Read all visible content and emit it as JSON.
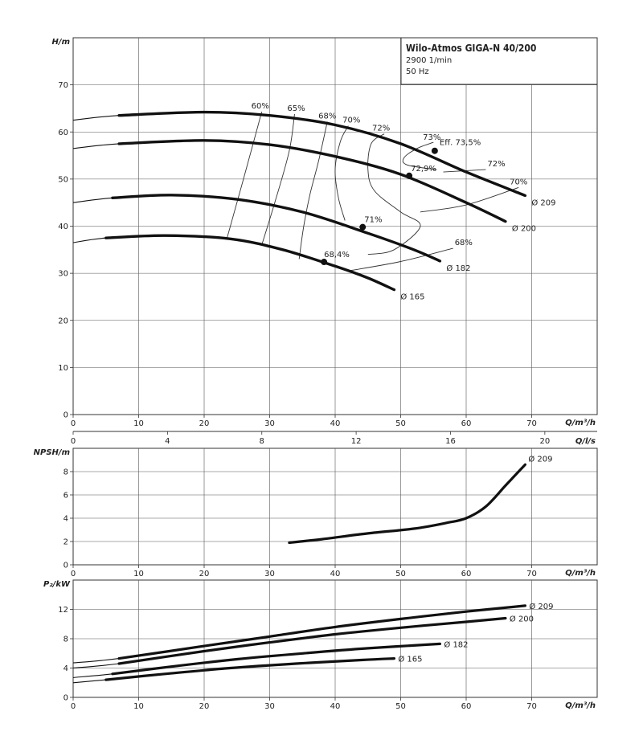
{
  "title_box": {
    "title": "Wilo-Atmos GIGA-N 40/200",
    "speed": "2900 1/min",
    "frequency": "50 Hz"
  },
  "chart_data": [
    {
      "id": "head",
      "type": "line",
      "xlabel": "Q/m³/h",
      "ylabel": "H/m",
      "xlim": [
        0,
        80
      ],
      "ylim": [
        0,
        80
      ],
      "xticks": [
        0,
        10,
        20,
        30,
        40,
        50,
        60,
        70
      ],
      "yticks": [
        0,
        10,
        20,
        30,
        40,
        50,
        60,
        70
      ],
      "grid": true,
      "series": [
        {
          "name": "Ø 209",
          "x": [
            0,
            7,
            20,
            30,
            40,
            50,
            60,
            69
          ],
          "y": [
            62.5,
            63.5,
            64.2,
            63.5,
            61.5,
            57.5,
            51.5,
            46.5
          ],
          "thick_from": 7
        },
        {
          "name": "Ø 200",
          "x": [
            0,
            7,
            20,
            30,
            40,
            50,
            60,
            66
          ],
          "y": [
            56.5,
            57.5,
            58.2,
            57.3,
            54.8,
            51.0,
            45.0,
            41.0
          ],
          "thick_from": 7
        },
        {
          "name": "Ø 182",
          "x": [
            0,
            6,
            15,
            25,
            35,
            45,
            52,
            56
          ],
          "y": [
            45.0,
            46.0,
            46.6,
            45.7,
            43.0,
            38.5,
            35.0,
            32.6
          ],
          "thick_from": 6
        },
        {
          "name": "Ø 165",
          "x": [
            0,
            5,
            14,
            24,
            32,
            40,
            45,
            49
          ],
          "y": [
            36.5,
            37.5,
            38.0,
            37.3,
            35.0,
            31.5,
            29.0,
            26.5
          ],
          "thick_from": 5
        }
      ],
      "efficiency_lines": [
        {
          "label": "60%",
          "x": [
            23.5,
            26,
            28.8
          ],
          "y": [
            37.5,
            50,
            64.3
          ]
        },
        {
          "label": "65%",
          "x": [
            28.8,
            31,
            33,
            33.8
          ],
          "y": [
            36,
            46,
            56,
            63.8
          ]
        },
        {
          "label": "68%",
          "x": [
            34.5,
            35.2,
            36.2,
            37.5,
            38.8
          ],
          "y": [
            33,
            40,
            47,
            54,
            62.2
          ]
        },
        {
          "label": "70%",
          "x": [
            41.5,
            40.5,
            40.0,
            40.8,
            42
          ],
          "y": [
            41.2,
            46,
            52,
            58,
            61.3
          ]
        },
        {
          "label": "72%",
          "x": [
            45,
            49,
            53,
            50,
            46,
            45,
            45.5,
            47.5
          ],
          "y": [
            34,
            35,
            40,
            43,
            47.5,
            52,
            57.5,
            59.6
          ]
        },
        {
          "label": "73%",
          "x": [
            55.5,
            51,
            50.5,
            52.5,
            55
          ],
          "y": [
            52,
            53,
            54.5,
            56.5,
            57.8
          ]
        },
        {
          "label": "72%",
          "x": [
            56.5,
            63
          ],
          "y": [
            51.5,
            52.0
          ]
        },
        {
          "label": "68%",
          "x": [
            42,
            50,
            58
          ],
          "y": [
            30.5,
            32.5,
            35.3
          ]
        },
        {
          "label": "70%",
          "x": [
            53,
            60,
            68
          ],
          "y": [
            43,
            44.5,
            48.2
          ]
        }
      ],
      "bep_points": [
        {
          "label": "Eff. 73,5%",
          "x": 55.2,
          "y": 56.0
        },
        {
          "label": "72,9%",
          "x": 51.3,
          "y": 50.7
        },
        {
          "label": "71%",
          "x": 44.2,
          "y": 39.8
        },
        {
          "label": "68,4%",
          "x": 38.3,
          "y": 32.4
        }
      ],
      "curve_labels": [
        "Ø 209",
        "Ø 200",
        "Ø 182",
        "Ø 165"
      ]
    },
    {
      "id": "flow_ls",
      "type": "axis",
      "xlabel": "Q/l/s",
      "xlim": [
        0,
        22.22
      ],
      "xticks": [
        0,
        4,
        8,
        12,
        16,
        20
      ]
    },
    {
      "id": "npsh",
      "type": "line",
      "xlabel": "Q/m³/h",
      "ylabel": "NPSH/m",
      "xlim": [
        0,
        80
      ],
      "ylim": [
        0,
        10
      ],
      "xticks": [
        0,
        10,
        20,
        30,
        40,
        50,
        60,
        70
      ],
      "yticks": [
        0,
        2,
        4,
        6,
        8
      ],
      "grid": true,
      "series": [
        {
          "name": "Ø 209",
          "x": [
            33,
            38,
            45,
            52,
            57,
            60,
            63,
            66,
            69
          ],
          "y": [
            1.9,
            2.2,
            2.7,
            3.1,
            3.6,
            4.0,
            5.0,
            6.8,
            8.6
          ]
        }
      ]
    },
    {
      "id": "power",
      "type": "line",
      "xlabel": "Q/m³/h",
      "ylabel": "P₂/kW",
      "xlim": [
        0,
        80
      ],
      "ylim": [
        0,
        16
      ],
      "xticks": [
        0,
        10,
        20,
        30,
        40,
        50,
        60,
        70
      ],
      "yticks": [
        0,
        4,
        8,
        12
      ],
      "grid": true,
      "series": [
        {
          "name": "Ø 209",
          "x": [
            0,
            7,
            20,
            30,
            40,
            50,
            60,
            69
          ],
          "y": [
            4.7,
            5.3,
            7.0,
            8.3,
            9.6,
            10.7,
            11.7,
            12.5
          ],
          "thick_from": 7
        },
        {
          "name": "Ø 200",
          "x": [
            0,
            7,
            20,
            30,
            40,
            50,
            60,
            66
          ],
          "y": [
            4.0,
            4.6,
            6.3,
            7.5,
            8.6,
            9.5,
            10.3,
            10.8
          ],
          "thick_from": 7
        },
        {
          "name": "Ø 182",
          "x": [
            0,
            6,
            15,
            25,
            35,
            45,
            56
          ],
          "y": [
            2.7,
            3.2,
            4.2,
            5.2,
            6.0,
            6.7,
            7.3
          ],
          "thick_from": 6
        },
        {
          "name": "Ø 165",
          "x": [
            0,
            5,
            14,
            24,
            34,
            44,
            49
          ],
          "y": [
            2.0,
            2.4,
            3.2,
            4.0,
            4.6,
            5.1,
            5.3
          ],
          "thick_from": 5
        }
      ]
    }
  ]
}
